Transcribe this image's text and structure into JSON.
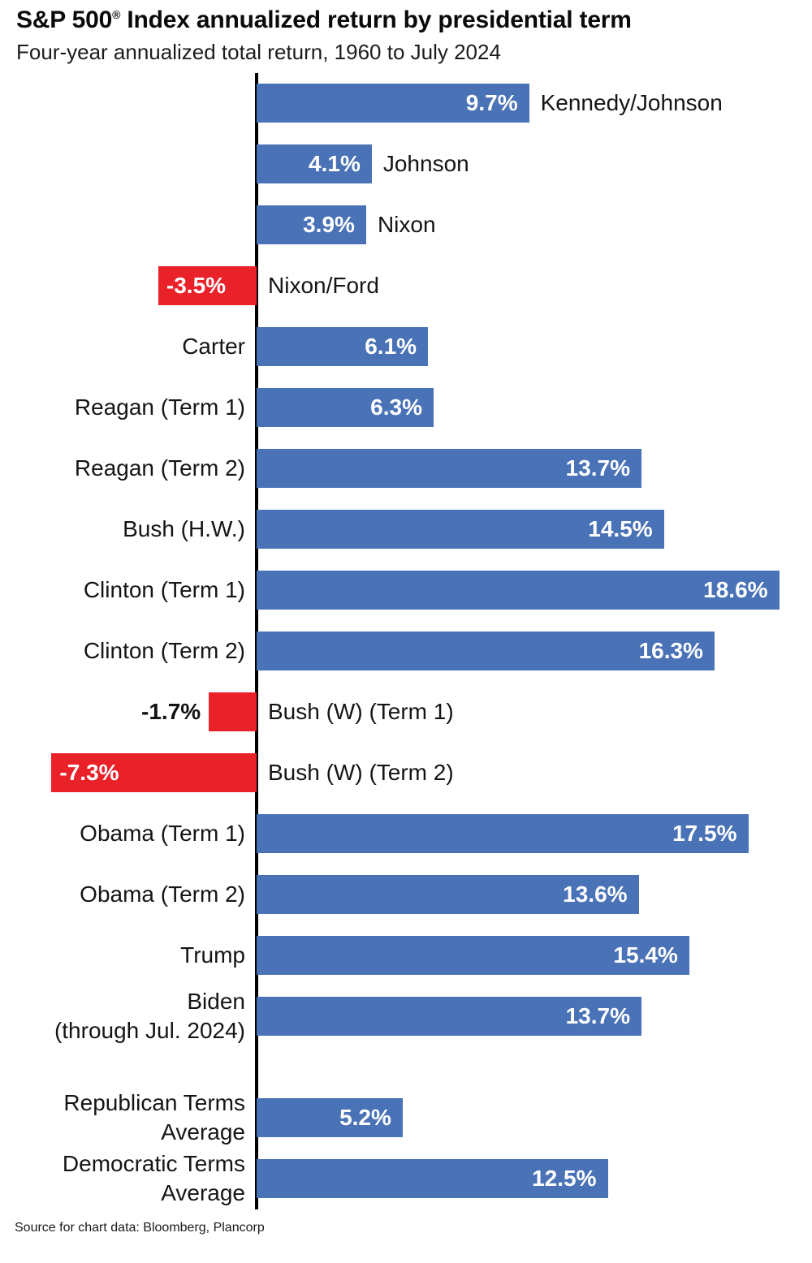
{
  "header": {
    "title_prefix": "S&P 500",
    "title_reg": "®",
    "title_suffix": " Index annualized return by presidential term",
    "subtitle": "Four-year annualized total return, 1960 to July 2024"
  },
  "chart_data": {
    "type": "bar",
    "orientation": "horizontal",
    "unit": "%",
    "title": "S&P 500 Index annualized return by presidential term",
    "subtitle": "Four-year annualized total return, 1960 to July 2024",
    "source": "Source for chart data: Bloomberg, Plancorp",
    "xlim": [
      -7.3,
      18.6
    ],
    "grid": false,
    "legend": false,
    "colors": {
      "positive": "#4a72b6",
      "negative": "#e92129",
      "axis": "#000000"
    },
    "bars": [
      {
        "label": "Kennedy/Johnson",
        "value": 9.7,
        "display": "9.7%",
        "label_side": "bar-end",
        "value_inside": true
      },
      {
        "label": "Johnson",
        "value": 4.1,
        "display": "4.1%",
        "label_side": "bar-end",
        "value_inside": true
      },
      {
        "label": "Nixon",
        "value": 3.9,
        "display": "3.9%",
        "label_side": "bar-end",
        "value_inside": true
      },
      {
        "label": "Nixon/Ford",
        "value": -3.5,
        "display": "-3.5%",
        "label_side": "axis-right",
        "value_inside": true
      },
      {
        "label": "Carter",
        "value": 6.1,
        "display": "6.1%",
        "label_side": "axis-left",
        "value_inside": true
      },
      {
        "label": "Reagan (Term 1)",
        "value": 6.3,
        "display": "6.3%",
        "label_side": "axis-left",
        "value_inside": true
      },
      {
        "label": "Reagan (Term 2)",
        "value": 13.7,
        "display": "13.7%",
        "label_side": "axis-left",
        "value_inside": true
      },
      {
        "label": "Bush (H.W.)",
        "value": 14.5,
        "display": "14.5%",
        "label_side": "axis-left",
        "value_inside": true
      },
      {
        "label": "Clinton (Term 1)",
        "value": 18.6,
        "display": "18.6%",
        "label_side": "axis-left",
        "value_inside": true
      },
      {
        "label": "Clinton (Term 2)",
        "value": 16.3,
        "display": "16.3%",
        "label_side": "axis-left",
        "value_inside": true
      },
      {
        "label": "Bush (W) (Term 1)",
        "value": -1.7,
        "display": "-1.7%",
        "label_side": "axis-right",
        "value_inside": false
      },
      {
        "label": "Bush (W) (Term 2)",
        "value": -7.3,
        "display": "-7.3%",
        "label_side": "axis-right",
        "value_inside": true
      },
      {
        "label": "Obama (Term 1)",
        "value": 17.5,
        "display": "17.5%",
        "label_side": "axis-left",
        "value_inside": true
      },
      {
        "label": "Obama (Term 2)",
        "value": 13.6,
        "display": "13.6%",
        "label_side": "axis-left",
        "value_inside": true
      },
      {
        "label": "Trump",
        "value": 15.4,
        "display": "15.4%",
        "label_side": "axis-left",
        "value_inside": true
      },
      {
        "label": "Biden\n(through Jul. 2024)",
        "value": 13.7,
        "display": "13.7%",
        "label_side": "axis-left",
        "value_inside": true
      },
      {
        "label": "Republican Terms\nAverage",
        "value": 5.2,
        "display": "5.2%",
        "label_side": "axis-left",
        "value_inside": true,
        "gap_before": true
      },
      {
        "label": "Democratic Terms\nAverage",
        "value": 12.5,
        "display": "12.5%",
        "label_side": "axis-left",
        "value_inside": true
      }
    ]
  },
  "footer": {
    "source": "Source for chart data: Bloomberg, Plancorp"
  }
}
